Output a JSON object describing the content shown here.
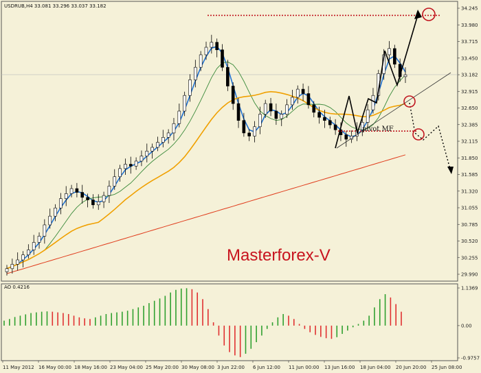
{
  "header": {
    "symbol_text": "USDRUB,H4  33.081 33.296 33.037 33.182"
  },
  "ao_header": {
    "label": "AO 0.4216"
  },
  "watermark": {
    "text": "Masterforex-V",
    "color": "#c8141e"
  },
  "annotations": {
    "pivot_label": "pivot MF"
  },
  "colors": {
    "background": "#f5f1d8",
    "bull_candle": "#ffffff",
    "bear_candle": "#000000",
    "ma_fast": "#1e6fd0",
    "ma_mid": "#3a8a3a",
    "ma_slow": "#f0a000",
    "ma_long": "#e03a1a",
    "ao_up": "#2fa02f",
    "ao_down": "#e03030",
    "dotted_level": "#c0141e"
  },
  "chart_data": [
    {
      "type": "candlestick",
      "title": "USDRUB,H4",
      "ohlc_last": {
        "open": 33.081,
        "high": 33.296,
        "low": 33.037,
        "close": 33.182
      },
      "ylim": [
        29.99,
        34.245
      ],
      "y_ticks": [
        "34.245",
        "33.980",
        "33.715",
        "33.450",
        "33.182",
        "32.915",
        "32.650",
        "32.385",
        "32.115",
        "31.850",
        "31.585",
        "31.320",
        "31.055",
        "30.785",
        "30.520",
        "30.255",
        "29.990"
      ],
      "x_ticks": [
        "11 May 2012",
        "16 May 00:00",
        "18 May 16:00",
        "23 May 04:00",
        "25 May 20:00",
        "30 May 08:00",
        "3 Jun 22:00",
        "6 Jun 12:00",
        "11 Jun 00:00",
        "13 Jun 16:00",
        "18 Jun 04:00",
        "20 Jun 20:00",
        "25 Jun 08:00"
      ],
      "close_series": [
        30.08,
        30.15,
        30.22,
        30.3,
        30.38,
        30.5,
        30.6,
        30.78,
        30.92,
        31.05,
        31.2,
        31.28,
        31.36,
        31.3,
        31.22,
        31.18,
        31.1,
        31.15,
        31.25,
        31.4,
        31.55,
        31.68,
        31.75,
        31.72,
        31.8,
        31.88,
        31.96,
        32.02,
        32.1,
        32.18,
        32.25,
        32.4,
        32.6,
        32.85,
        33.1,
        33.3,
        33.5,
        33.62,
        33.7,
        33.58,
        33.3,
        33.0,
        32.72,
        32.45,
        32.25,
        32.2,
        32.35,
        32.55,
        32.72,
        32.6,
        32.48,
        32.55,
        32.7,
        32.82,
        32.95,
        32.88,
        32.7,
        32.58,
        32.5,
        32.45,
        32.38,
        32.3,
        32.22,
        32.15,
        32.2,
        32.3,
        32.42,
        32.62,
        32.85,
        33.2,
        33.5,
        33.6,
        33.35,
        33.15,
        33.18
      ],
      "current_price": 33.182,
      "moving_averages": [
        {
          "name": "",
          "color": "#1e6fd0"
        },
        {
          "name": "",
          "color": "#3a8a3a"
        },
        {
          "name": "",
          "color": "#f0a000"
        },
        {
          "name": "",
          "color": "#e03a1a"
        }
      ],
      "resistance_level": 34.13,
      "pivot_level": 32.28,
      "pivot_label": "pivot MF"
    },
    {
      "type": "bar",
      "title": "AO 0.4216",
      "ylim": [
        -0.9757,
        1.1369
      ],
      "y_ticks": [
        "1.1369",
        "0.00",
        "-0.9757"
      ],
      "values": [
        0.15,
        0.2,
        0.26,
        0.3,
        0.34,
        0.38,
        0.4,
        0.42,
        0.43,
        0.42,
        0.4,
        0.38,
        0.35,
        0.3,
        0.25,
        0.22,
        0.2,
        0.25,
        0.3,
        0.35,
        0.38,
        0.4,
        0.42,
        0.45,
        0.5,
        0.55,
        0.6,
        0.68,
        0.75,
        0.82,
        0.9,
        1.0,
        1.08,
        1.12,
        1.13,
        1.1,
        1.0,
        0.8,
        0.5,
        0.1,
        -0.3,
        -0.6,
        -0.8,
        -0.9,
        -0.95,
        -0.85,
        -0.7,
        -0.5,
        -0.3,
        -0.1,
        0.1,
        0.25,
        0.35,
        0.3,
        0.2,
        0.05,
        -0.1,
        -0.2,
        -0.28,
        -0.34,
        -0.38,
        -0.4,
        -0.35,
        -0.25,
        -0.15,
        -0.05,
        0.05,
        0.15,
        0.3,
        0.55,
        0.8,
        0.95,
        0.85,
        0.65,
        0.42
      ]
    }
  ]
}
